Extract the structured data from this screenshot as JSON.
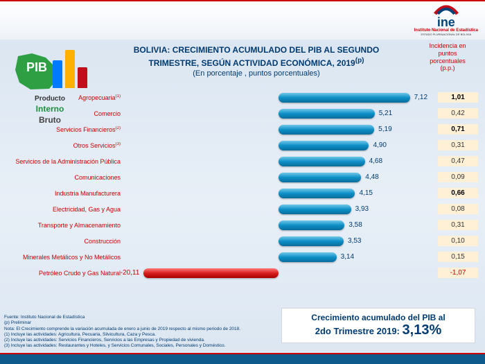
{
  "ine": {
    "name": "ine",
    "sub1": "Instituto Nacional de Estadística",
    "sub2": "ESTADO PLURINACIONAL DE BOLIVIA",
    "arc_color1": "#c20e1a",
    "arc_color2": "#00447c"
  },
  "pib": {
    "big": "PIB",
    "l1": "Producto",
    "l2": "Interno",
    "l3": "Bruto",
    "map_color": "#2ea043",
    "bars": [
      {
        "color": "#007aff",
        "h": 40
      },
      {
        "color": "#ffb000",
        "h": 55
      },
      {
        "color": "#c20e1a",
        "h": 30
      }
    ]
  },
  "title": {
    "l1": "BOLIVIA:  CRECIMIENTO ACUMULADO DEL PIB AL SEGUNDO",
    "l2": "TRIMESTRE, SEGÚN ACTIVIDAD ECONÓMICA, 2019",
    "sup": "(p)",
    "l3": "(En porcentaje , puntos porcentuales)"
  },
  "incidencia_header": "Incidencia en puntos porcentuales (p.p.)",
  "chart": {
    "max_pos": 8,
    "max_neg": 22,
    "rows": [
      {
        "label": "Agropecuaria",
        "sup": "(1)",
        "value": 7.12,
        "display": "7,12",
        "inc": "1,01",
        "inc_bold": true
      },
      {
        "label": "Comercio",
        "value": 5.21,
        "display": "5,21",
        "inc": "0,42"
      },
      {
        "label": "Servicios Financieros",
        "sup": "(2)",
        "value": 5.19,
        "display": "5,19",
        "inc": "0,71",
        "inc_bold": true
      },
      {
        "label": "Otros Servicios",
        "sup": "(3)",
        "value": 4.9,
        "display": "4,90",
        "inc": "0,31"
      },
      {
        "label": "Servicios de la Administración Pública",
        "value": 4.68,
        "display": "4,68",
        "inc": "0,47"
      },
      {
        "label": "Comunicaciones",
        "value": 4.48,
        "display": "4,48",
        "inc": "0,09"
      },
      {
        "label": "Industria Manufacturera",
        "value": 4.15,
        "display": "4,15",
        "inc": "0,66",
        "inc_bold": true
      },
      {
        "label": "Electricidad, Gas y Agua",
        "value": 3.93,
        "display": "3,93",
        "inc": "0,08"
      },
      {
        "label": "Transporte y Almacenamiento",
        "value": 3.58,
        "display": "3,58",
        "inc": "0,31"
      },
      {
        "label": "Construcción",
        "value": 3.53,
        "display": "3,53",
        "inc": "0,10"
      },
      {
        "label": "Minerales Metálicos y No Metálicos",
        "value": 3.14,
        "display": "3,14",
        "inc": "0,15"
      },
      {
        "label": "Petróleo Crudo y Gas Natural",
        "value": -20.11,
        "display": "-20,11",
        "inc": "-1,07",
        "inc_neg": true
      }
    ]
  },
  "footnotes": [
    "Fuente: Instituto Nacional de Estadística",
    "    (p) Preliminar",
    "Nota: El Crecimiento comprende la variación acumulada  de enero a junio de 2019 respecto al mismo periodo de 2018.",
    "(1) Incluye las actividades: Agricultura, Pecuaria, Silvicultura, Caza y Pesca.",
    "(2) Incluye las actividades: Servicios Financieros, Servicios a las Empresas y Propiedad de vivienda.",
    "(3) Incluye las actividades: Restaurantes y Hoteles, y Servicios Comunales, Sociales, Personales y  Doméstico."
  ],
  "total": {
    "l1": "Crecimiento acumulado del PIB al",
    "l2_prefix": "2do Trimestre 2019:",
    "pct": "3,13%"
  }
}
